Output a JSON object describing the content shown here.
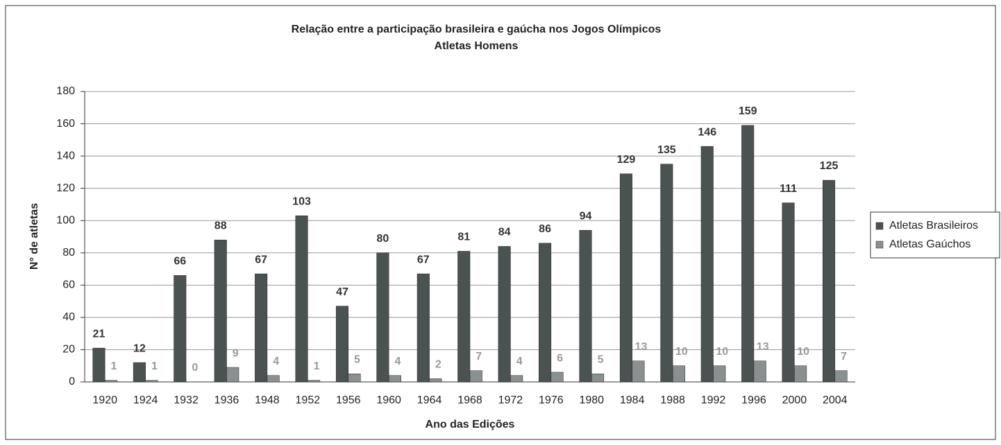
{
  "chart_data": {
    "type": "bar",
    "title": "Relação entre a participação brasileira e gaúcha nos Jogos Olímpicos",
    "subtitle": "Atletas Homens",
    "x_label": "Ano das Edições",
    "y_label": "N° de atletas",
    "categories": [
      "1920",
      "1924",
      "1932",
      "1936",
      "1948",
      "1952",
      "1956",
      "1960",
      "1964",
      "1968",
      "1972",
      "1976",
      "1980",
      "1984",
      "1988",
      "1992",
      "1996",
      "2000",
      "2004"
    ],
    "series": [
      {
        "name": "Atletas Brasileiros",
        "color": "#4b5252",
        "label_color": "#333333",
        "values": [
          21,
          12,
          66,
          88,
          67,
          103,
          47,
          80,
          67,
          81,
          84,
          86,
          94,
          129,
          135,
          146,
          159,
          111,
          125
        ]
      },
      {
        "name": "Atletas Gaúchos",
        "color": "#8a8f8f",
        "label_color": "#9a9a9a",
        "values": [
          1,
          1,
          0,
          9,
          4,
          1,
          5,
          4,
          2,
          7,
          4,
          6,
          5,
          13,
          10,
          10,
          13,
          10,
          7
        ]
      }
    ],
    "ylim": [
      0,
      180
    ],
    "yticks": [
      0,
      20,
      40,
      60,
      80,
      100,
      120,
      140,
      160,
      180
    ],
    "grid": true,
    "legend": "right",
    "data_labels": true
  }
}
